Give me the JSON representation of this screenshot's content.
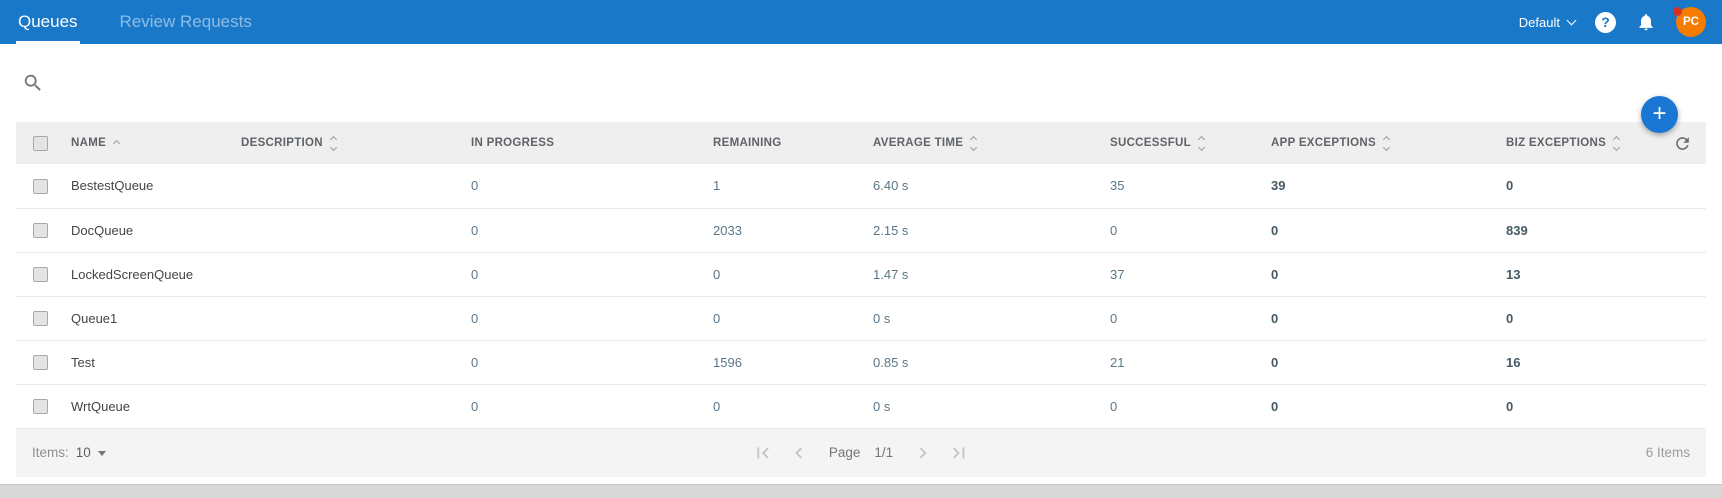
{
  "topbar": {
    "tabs": [
      {
        "label": "Queues",
        "active": true
      },
      {
        "label": "Review Requests",
        "active": false
      }
    ],
    "tenant": "Default",
    "avatar_initials": "PC"
  },
  "icons": {
    "search": "magnifier",
    "help": "?",
    "notifications": "bell",
    "tenant_chevron": "chevron-down",
    "plus": "+",
    "refresh": "clockwise-arrow",
    "sort_asc": "chevron-up",
    "sort_both": "chevron-up-down",
    "first_page": "chevron-left-bar",
    "prev_page": "chevron-left",
    "next_page": "chevron-right",
    "last_page": "chevron-right-bar",
    "page_size_caret": "caret-down",
    "checkbox": "square"
  },
  "table": {
    "columns": [
      {
        "label": "NAME",
        "sort": "asc"
      },
      {
        "label": "DESCRIPTION",
        "sort": "both"
      },
      {
        "label": "IN PROGRESS",
        "sort": "none"
      },
      {
        "label": "REMAINING",
        "sort": "none"
      },
      {
        "label": "AVERAGE TIME",
        "sort": "both"
      },
      {
        "label": "SUCCESSFUL",
        "sort": "both"
      },
      {
        "label": "APP EXCEPTIONS",
        "sort": "both"
      },
      {
        "label": "BIZ EXCEPTIONS",
        "sort": "both"
      }
    ],
    "rows": [
      {
        "name": "BestestQueue",
        "description": "",
        "in_progress": "0",
        "remaining": "1",
        "average_time": "6.40 s",
        "successful": "35",
        "app_exceptions": "39",
        "biz_exceptions": "0"
      },
      {
        "name": "DocQueue",
        "description": "",
        "in_progress": "0",
        "remaining": "2033",
        "average_time": "2.15 s",
        "successful": "0",
        "app_exceptions": "0",
        "biz_exceptions": "839"
      },
      {
        "name": "LockedScreenQueue",
        "description": "",
        "in_progress": "0",
        "remaining": "0",
        "average_time": "1.47 s",
        "successful": "37",
        "app_exceptions": "0",
        "biz_exceptions": "13"
      },
      {
        "name": "Queue1",
        "description": "",
        "in_progress": "0",
        "remaining": "0",
        "average_time": "0 s",
        "successful": "0",
        "app_exceptions": "0",
        "biz_exceptions": "0"
      },
      {
        "name": "Test",
        "description": "",
        "in_progress": "0",
        "remaining": "1596",
        "average_time": "0.85 s",
        "successful": "21",
        "app_exceptions": "0",
        "biz_exceptions": "16"
      },
      {
        "name": "WrtQueue",
        "description": "",
        "in_progress": "0",
        "remaining": "0",
        "average_time": "0 s",
        "successful": "0",
        "app_exceptions": "0",
        "biz_exceptions": "0"
      }
    ]
  },
  "footer": {
    "items_label": "Items:",
    "page_size": "10",
    "page_label": "Page",
    "page_value": "1/1",
    "total": "6 Items"
  },
  "colors": {
    "topbar_bg": "#1978c8",
    "accent": "#1976d2",
    "avatar_bg": "#f57c00",
    "badge_red": "#d93025",
    "table_header_bg": "#efefef",
    "footer_bg": "#f4f4f4"
  }
}
